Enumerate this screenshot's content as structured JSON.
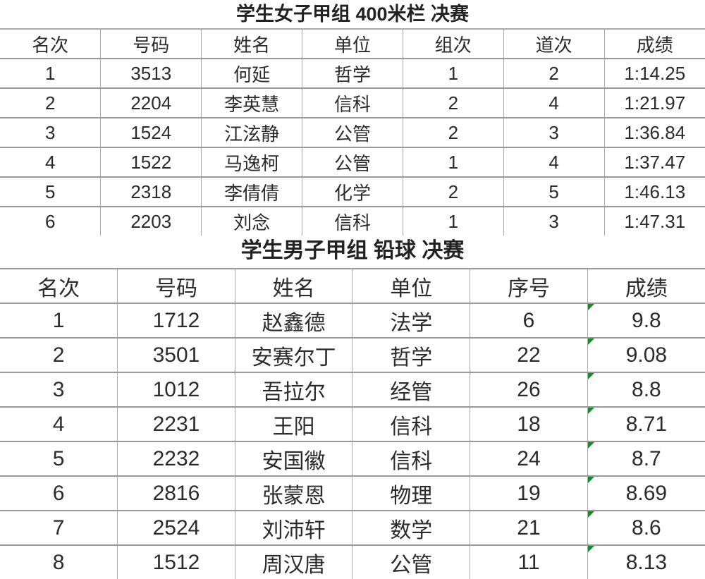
{
  "table1": {
    "title": "学生女子甲组 400米栏 决赛",
    "headers": [
      "名次",
      "号码",
      "姓名",
      "单位",
      "组次",
      "道次",
      "成绩"
    ],
    "rows": [
      [
        "1",
        "3513",
        "何延",
        "哲学",
        "1",
        "2",
        "1:14.25"
      ],
      [
        "2",
        "2204",
        "李英慧",
        "信科",
        "2",
        "4",
        "1:21.97"
      ],
      [
        "3",
        "1524",
        "江泫静",
        "公管",
        "2",
        "3",
        "1:36.84"
      ],
      [
        "4",
        "1522",
        "马逸柯",
        "公管",
        "1",
        "4",
        "1:37.47"
      ],
      [
        "5",
        "2318",
        "李倩倩",
        "化学",
        "2",
        "5",
        "1:46.13"
      ],
      [
        "6",
        "2203",
        "刘念",
        "信科",
        "1",
        "3",
        "1:47.31"
      ]
    ]
  },
  "table2": {
    "title": "学生男子甲组 铅球 决赛",
    "headers": [
      "名次",
      "号码",
      "姓名",
      "单位",
      "序号",
      "成绩"
    ],
    "rows": [
      [
        "1",
        "1712",
        "赵鑫德",
        "法学",
        "6",
        "9.8"
      ],
      [
        "2",
        "3501",
        "安赛尔丁",
        "哲学",
        "22",
        "9.08"
      ],
      [
        "3",
        "1012",
        "吾拉尔",
        "经管",
        "26",
        "8.8"
      ],
      [
        "4",
        "2231",
        "王阳",
        "信科",
        "18",
        "8.71"
      ],
      [
        "5",
        "2232",
        "安国徽",
        "信科",
        "24",
        "8.7"
      ],
      [
        "6",
        "2816",
        "张蒙恩",
        "物理",
        "19",
        "8.69"
      ],
      [
        "7",
        "2524",
        "刘沛轩",
        "数学",
        "21",
        "8.6"
      ],
      [
        "8",
        "1512",
        "周汉唐",
        "公管",
        "11",
        "8.13"
      ]
    ],
    "marker_color": "#1a8a2a"
  }
}
